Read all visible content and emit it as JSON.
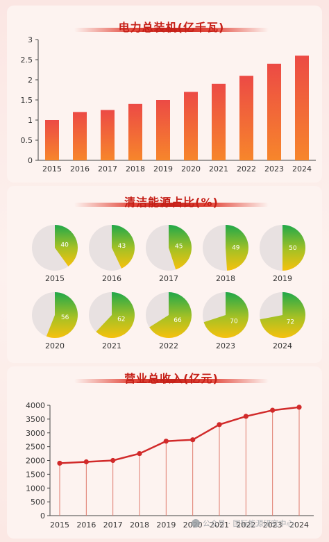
{
  "sections": {
    "capacity_title": "电力总装机(亿千瓦)",
    "clean_title": "清洁能源占比(%)",
    "revenue_title": "营业总收入(亿元)"
  },
  "watermark": "公众号 · 国际能源研究中心",
  "colors": {
    "bar_top": "#ec4a45",
    "bar_bottom": "#f7862b",
    "pie_green": "#20a84a",
    "pie_yellow": "#f6c10d",
    "pie_bg": "#e8e1e1",
    "line": "#d12a2a",
    "title_red": "#c51f17"
  },
  "chart_data": [
    {
      "type": "bar",
      "title": "电力总装机(亿千瓦)",
      "categories": [
        "2015",
        "2016",
        "2017",
        "2018",
        "2019",
        "2020",
        "2021",
        "2022",
        "2023",
        "2024"
      ],
      "values": [
        1.0,
        1.2,
        1.25,
        1.4,
        1.5,
        1.7,
        1.9,
        2.1,
        2.4,
        2.6
      ],
      "ylim": [
        0,
        3
      ],
      "yticks": [
        "0",
        "0.5",
        "1",
        "1.5",
        "2",
        "2.5",
        "3"
      ],
      "grid": false
    },
    {
      "type": "pie",
      "title": "清洁能源占比(%)",
      "categories": [
        "2015",
        "2016",
        "2017",
        "2018",
        "2019",
        "2020",
        "2021",
        "2022",
        "2023",
        "2024"
      ],
      "values": [
        40,
        43,
        45,
        49,
        50,
        56,
        62,
        66,
        70,
        72
      ]
    },
    {
      "type": "line",
      "title": "营业总收入(亿元)",
      "categories": [
        "2015",
        "2016",
        "2017",
        "2018",
        "2019",
        "2020",
        "2021",
        "2022",
        "2023",
        "2024"
      ],
      "values": [
        1900,
        1950,
        2000,
        2250,
        2700,
        2750,
        3300,
        3600,
        3820,
        3930
      ],
      "ylim": [
        0,
        4000
      ],
      "yticks": [
        "0",
        "500",
        "1000",
        "1500",
        "2000",
        "2500",
        "3000",
        "3500",
        "4000"
      ],
      "grid": false
    }
  ]
}
